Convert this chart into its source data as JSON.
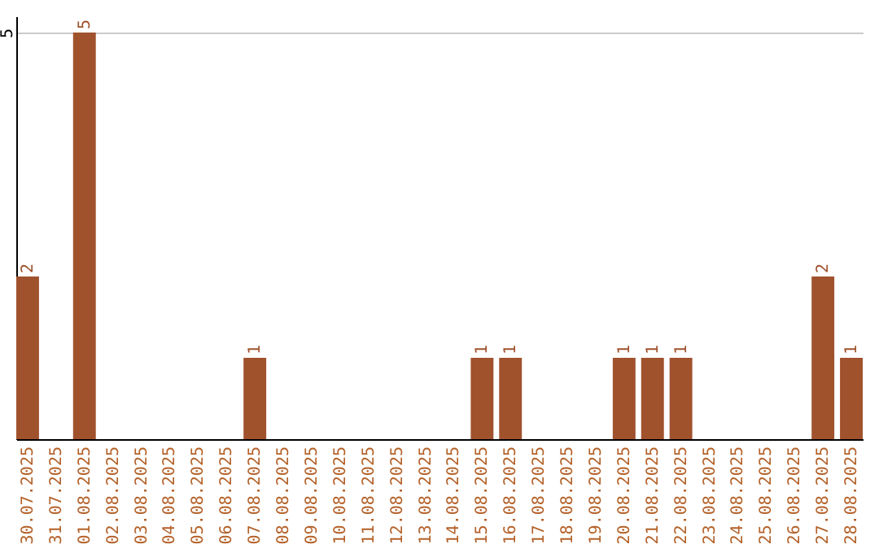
{
  "chart_data": {
    "type": "bar",
    "categories": [
      "30.07.2025",
      "31.07.2025",
      "01.08.2025",
      "02.08.2025",
      "03.08.2025",
      "04.08.2025",
      "05.08.2025",
      "06.08.2025",
      "07.08.2025",
      "08.08.2025",
      "09.08.2025",
      "10.08.2025",
      "11.08.2025",
      "12.08.2025",
      "13.08.2025",
      "14.08.2025",
      "15.08.2025",
      "16.08.2025",
      "17.08.2025",
      "18.08.2025",
      "19.08.2025",
      "20.08.2025",
      "21.08.2025",
      "22.08.2025",
      "23.08.2025",
      "24.08.2025",
      "25.08.2025",
      "26.08.2025",
      "27.08.2025",
      "28.08.2025"
    ],
    "values": [
      2,
      0,
      5,
      0,
      0,
      0,
      0,
      0,
      1,
      0,
      0,
      0,
      0,
      0,
      0,
      0,
      1,
      1,
      0,
      0,
      0,
      1,
      1,
      1,
      0,
      0,
      0,
      0,
      2,
      1
    ],
    "value_labels": [
      "2",
      null,
      "5",
      null,
      null,
      null,
      null,
      null,
      "1",
      null,
      null,
      null,
      null,
      null,
      null,
      null,
      "1",
      "1",
      null,
      null,
      null,
      "1",
      "1",
      "1",
      null,
      null,
      null,
      null,
      "2",
      "1"
    ],
    "color": "#a0522d",
    "ylim": [
      0,
      5.2
    ],
    "yticks": [
      5
    ],
    "grid": "y"
  }
}
